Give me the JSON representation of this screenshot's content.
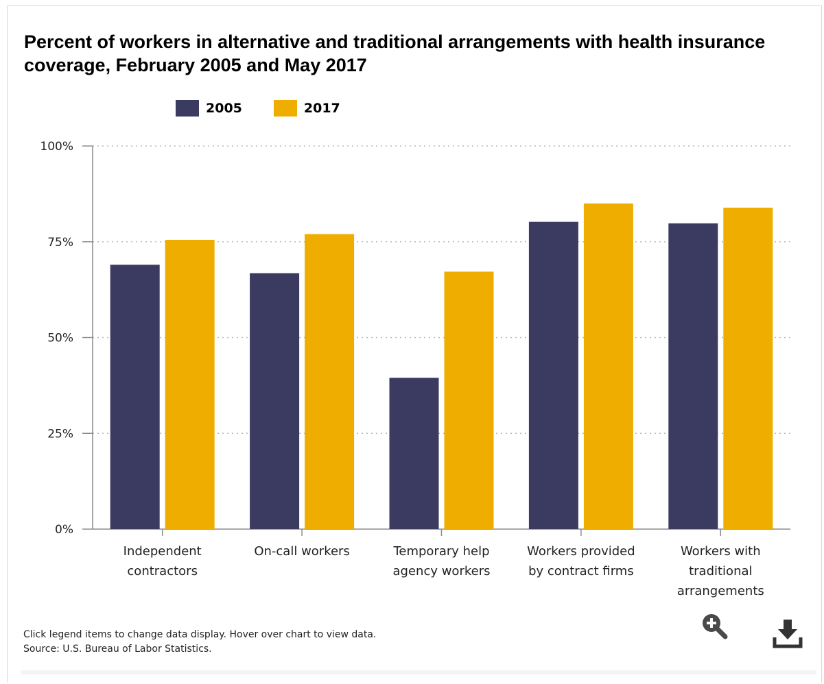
{
  "chart_data": {
    "type": "bar",
    "title": "Percent of workers in alternative and traditional arrangements with health insurance coverage, February 2005 and May 2017",
    "categories": [
      [
        "Independent",
        "contractors"
      ],
      [
        "On-call workers"
      ],
      [
        "Temporary help",
        "agency workers"
      ],
      [
        "Workers provided",
        "by contract firms"
      ],
      [
        "Workers with",
        "traditional",
        "arrangements"
      ]
    ],
    "series": [
      {
        "name": "2005",
        "color": "#3b3b62",
        "values": [
          69,
          66.8,
          39.5,
          80.2,
          79.8
        ]
      },
      {
        "name": "2017",
        "color": "#efad00",
        "values": [
          75.5,
          77,
          67.2,
          85,
          83.9
        ]
      }
    ],
    "ylim": [
      0,
      100
    ],
    "yticks": [
      {
        "value": 0,
        "label": "0%"
      },
      {
        "value": 25,
        "label": "25%"
      },
      {
        "value": 50,
        "label": "50%"
      },
      {
        "value": 75,
        "label": "75%"
      },
      {
        "value": 100,
        "label": "100%"
      }
    ],
    "xlabel": "",
    "ylabel": "",
    "grid": "horizontal dotted",
    "legend_position": "top-left"
  },
  "footnote": {
    "line1": "Click legend items to change data display. Hover over chart to view data.",
    "line2": "Source: U.S. Bureau of Labor Statistics."
  },
  "icons": {
    "zoom": "zoom-in-icon",
    "download": "download-icon"
  }
}
